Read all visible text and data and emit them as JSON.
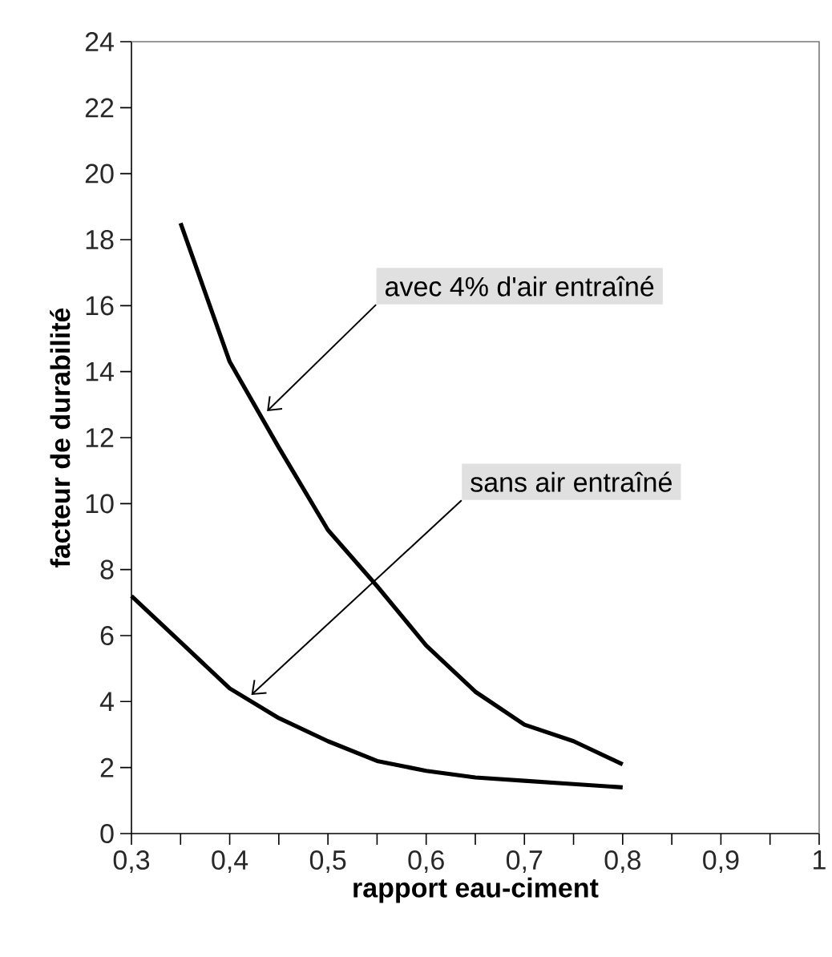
{
  "chart_data": {
    "type": "line",
    "xlabel": "rapport eau-ciment",
    "ylabel": "facteur de durabilité",
    "xlim": [
      0.3,
      1
    ],
    "ylim": [
      0,
      24
    ],
    "xticks": [
      {
        "value": 0.3,
        "label": "0,3"
      },
      {
        "value": 0.35,
        "label": null
      },
      {
        "value": 0.4,
        "label": "0,4"
      },
      {
        "value": 0.45,
        "label": null
      },
      {
        "value": 0.5,
        "label": "0,5"
      },
      {
        "value": 0.55,
        "label": null
      },
      {
        "value": 0.6,
        "label": "0,6"
      },
      {
        "value": 0.65,
        "label": null
      },
      {
        "value": 0.7,
        "label": "0,7"
      },
      {
        "value": 0.75,
        "label": null
      },
      {
        "value": 0.8,
        "label": "0,8"
      },
      {
        "value": 0.85,
        "label": null
      },
      {
        "value": 0.9,
        "label": "0,9"
      },
      {
        "value": 0.95,
        "label": null
      },
      {
        "value": 1,
        "label": "1"
      }
    ],
    "yticks": [
      0,
      2,
      4,
      6,
      8,
      10,
      12,
      14,
      16,
      18,
      20,
      22,
      24
    ],
    "grid": false,
    "series": [
      {
        "color": "#000000",
        "x": [
          0.35,
          0.4,
          0.45,
          0.5,
          0.55,
          0.6,
          0.65,
          0.7,
          0.75,
          0.8
        ],
        "values": [
          18.5,
          14.3,
          11.7,
          9.2,
          7.5,
          5.7,
          4.3,
          3.3,
          2.8,
          2.1
        ]
      },
      {
        "color": "#000000",
        "x": [
          0.3,
          0.35,
          0.4,
          0.45,
          0.5,
          0.55,
          0.6,
          0.65,
          0.7,
          0.75,
          0.8
        ],
        "values": [
          7.2,
          5.8,
          4.4,
          3.5,
          2.8,
          2.2,
          1.9,
          1.7,
          1.6,
          1.5,
          1.4
        ]
      }
    ],
    "annotations": [
      {
        "text": "avec 4% d'air entraîné",
        "x": 0.438,
        "y": 12.8
      },
      {
        "text": "sans air entraîné",
        "x": 0.422,
        "y": 4.2
      }
    ]
  }
}
